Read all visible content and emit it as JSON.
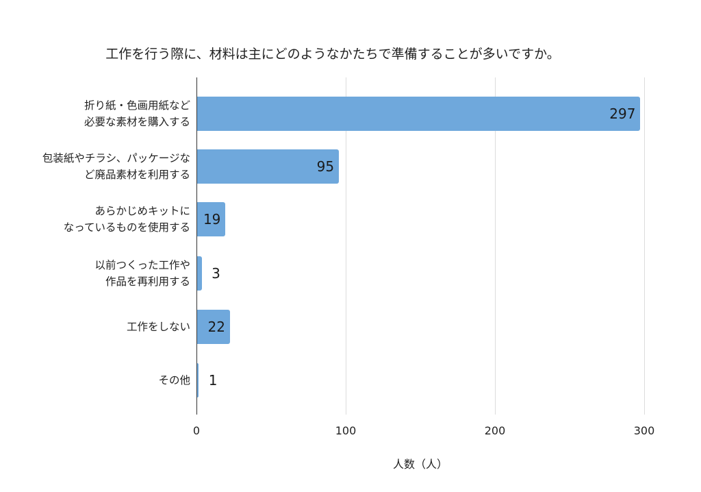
{
  "chart_data": {
    "type": "bar",
    "orientation": "horizontal",
    "title": "工作を行う際に、材料は主にどのようなかたちで準備することが多いですか。",
    "xlabel": "人数（人）",
    "ylabel": "",
    "xlim": [
      0,
      300
    ],
    "xticks": [
      "0",
      "100",
      "200",
      "300"
    ],
    "grid": true,
    "legend": null,
    "bar_color": "#6fa8dc",
    "categories": [
      "折り紙・色画用紙など必要な素材を購入する",
      "包装紙やチラシ、パッケージなど廃品素材を利用する",
      "あらかじめキットになっているものを使用する",
      "以前つくった工作や作品を再利用する",
      "工作をしない",
      "その他"
    ],
    "category_lines": [
      [
        "折り紙・色画用紙など",
        "必要な素材を購入する"
      ],
      [
        "包装紙やチラシ、パッケージな",
        "ど廃品素材を利用する"
      ],
      [
        "あらかじめキットに",
        "なっているものを使用する"
      ],
      [
        "以前つくった工作や",
        "作品を再利用する"
      ],
      [
        "工作をしない"
      ],
      [
        "その他"
      ]
    ],
    "values": [
      297,
      95,
      19,
      3,
      22,
      1
    ],
    "value_labels": [
      "297",
      "95",
      "19",
      "3",
      "22",
      "1"
    ]
  }
}
